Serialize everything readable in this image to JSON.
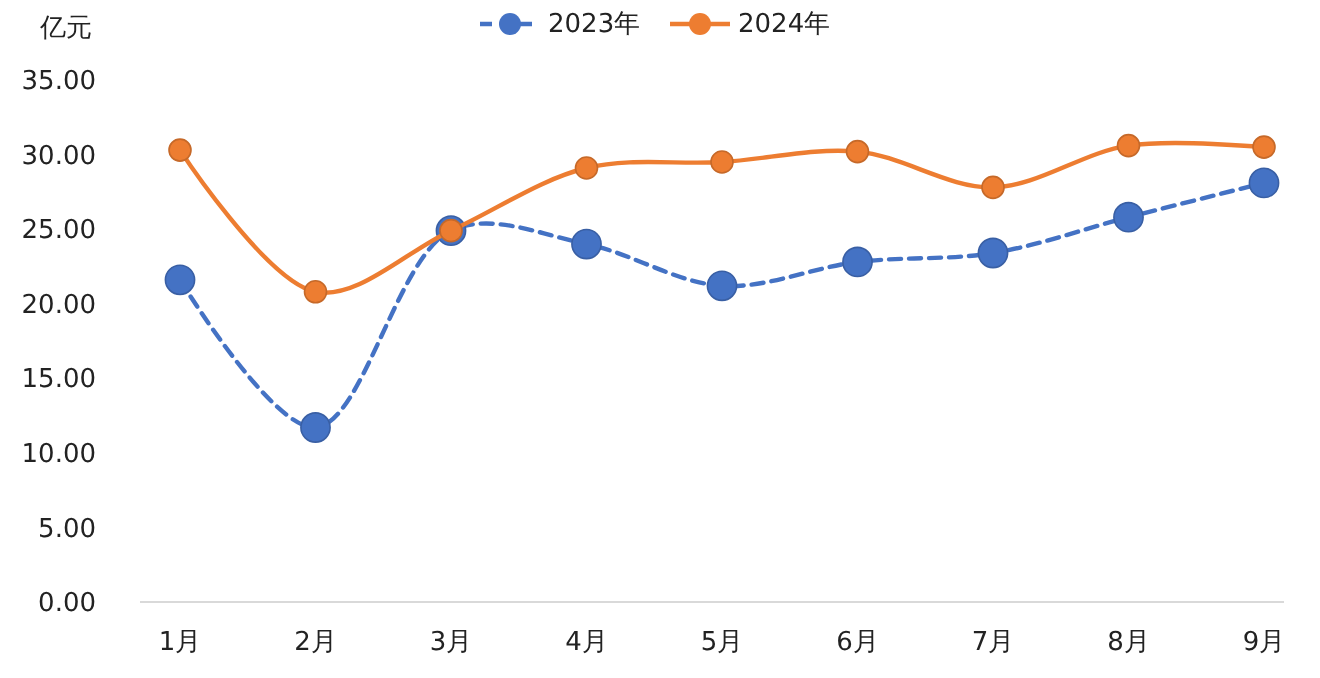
{
  "chart_data": {
    "type": "line",
    "ylabel": "亿元",
    "categories": [
      "1月",
      "2月",
      "3月",
      "4月",
      "5月",
      "6月",
      "7月",
      "8月",
      "9月"
    ],
    "series": [
      {
        "name": "2023年",
        "color": "#4472c4",
        "line_style": "dashed",
        "values": [
          21.6,
          11.7,
          24.9,
          24.0,
          21.2,
          22.8,
          23.4,
          25.8,
          28.1
        ]
      },
      {
        "name": "2024年",
        "color": "#ed7d31",
        "line_style": "solid",
        "values": [
          30.3,
          20.8,
          24.9,
          29.1,
          29.5,
          30.2,
          27.8,
          30.6,
          30.5
        ]
      }
    ],
    "ylim": [
      0,
      35
    ],
    "yticks": [
      {
        "value": 0,
        "label": "0.00"
      },
      {
        "value": 5,
        "label": "5.00"
      },
      {
        "value": 10,
        "label": "10.00"
      },
      {
        "value": 15,
        "label": "15.00"
      },
      {
        "value": 20,
        "label": "20.00"
      },
      {
        "value": 25,
        "label": "25.00"
      },
      {
        "value": 30,
        "label": "30.00"
      },
      {
        "value": 35,
        "label": "35.00"
      }
    ],
    "grid": false,
    "legend": "top",
    "marker": "circle"
  }
}
